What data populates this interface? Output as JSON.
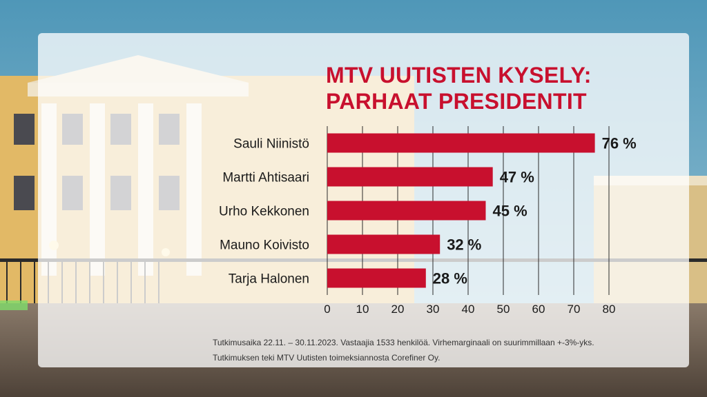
{
  "colors": {
    "accent": "#c8102e",
    "bar": "#c8102e"
  },
  "chart_data": {
    "type": "bar",
    "orientation": "horizontal",
    "title_lines": [
      "MTV UUTISTEN KYSELY:",
      "PARHAAT PRESIDENTIT"
    ],
    "categories": [
      "Sauli Niinistö",
      "Martti Ahtisaari",
      "Urho Kekkonen",
      "Mauno Koivisto",
      "Tarja Halonen"
    ],
    "values": [
      76,
      47,
      45,
      32,
      28
    ],
    "value_labels": [
      "76 %",
      "47 %",
      "45 %",
      "32 %",
      "28 %"
    ],
    "xlim": [
      0,
      80
    ],
    "xticks": [
      0,
      10,
      20,
      30,
      40,
      50,
      60,
      70,
      80
    ],
    "xtick_labels": [
      "0",
      "10",
      "20",
      "30",
      "40",
      "50",
      "60",
      "70",
      "80"
    ],
    "grid": true,
    "xlabel": "",
    "ylabel": ""
  },
  "footnote": {
    "line1": "Tutkimusaika 22.11. – 30.11.2023. Vastaajia 1533 henkilöä. Virhemarginaali on suurimmillaan +-3%-yks.",
    "line2": "Tutkimuksen teki MTV Uutisten toimeksiannosta Corefiner Oy."
  }
}
